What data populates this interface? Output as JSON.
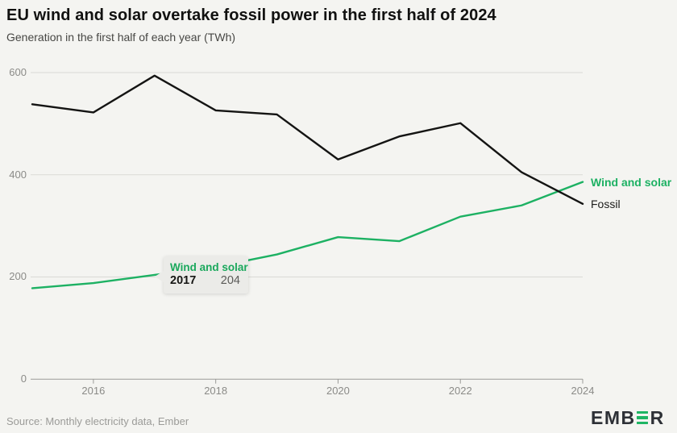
{
  "header": {
    "title": "EU wind and solar overtake fossil power in the first half of 2024",
    "subtitle": "Generation in the first half of each year (TWh)"
  },
  "chart_data": {
    "type": "line",
    "title": "EU wind and solar overtake fossil power in the first half of 2024",
    "subtitle": "Generation in the first half of each year (TWh)",
    "x": [
      2015,
      2016,
      2017,
      2018,
      2019,
      2020,
      2021,
      2022,
      2023,
      2024
    ],
    "series": [
      {
        "name": "Wind and solar",
        "color": "#1db163",
        "values": [
          178,
          188,
          204,
          220,
          244,
          278,
          270,
          318,
          340,
          386
        ]
      },
      {
        "name": "Fossil",
        "color": "#141413",
        "values": [
          538,
          522,
          594,
          526,
          518,
          430,
          475,
          501,
          405,
          343
        ]
      }
    ],
    "ylim": [
      0,
      600
    ],
    "yticks": [
      0,
      200,
      400,
      600
    ],
    "xticks": [
      2016,
      2018,
      2020,
      2022,
      2024
    ],
    "grid": "horizontal",
    "legend_position": "line-end-right",
    "units": "TWh"
  },
  "tooltip": {
    "series_label": "Wind and solar",
    "year": "2017",
    "value": "204"
  },
  "series_labels": {
    "wind": "Wind and solar",
    "fossil": "Fossil"
  },
  "footer": {
    "source": "Source: Monthly electricity data, Ember",
    "logo_left": "EMB",
    "logo_right": "R"
  },
  "colors": {
    "background": "#f4f4f1",
    "accent_green": "#1db163",
    "fossil_line": "#141413",
    "gridline": "#d9d9d5",
    "axis": "#9a9a97",
    "tick_text": "#8b8b88",
    "tooltip_bg": "#ebebe8"
  }
}
